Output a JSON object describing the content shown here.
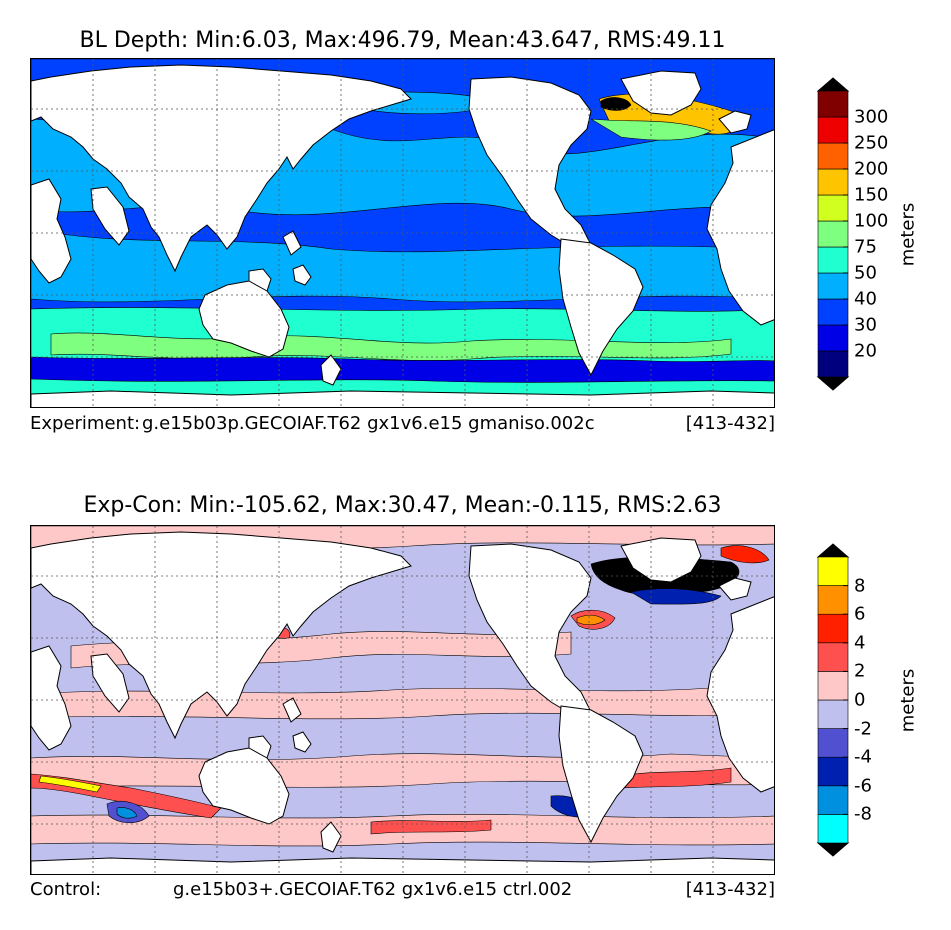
{
  "chart_data": [
    {
      "type": "contour-map",
      "title": "BL Depth: Min:6.03, Max:496.79, Mean:43.647, RMS:49.11",
      "caption_left": "Experiment:",
      "caption_middle": "g.e15b03p.GECOIAF.T62 gx1v6.e15 gmaniso.002c",
      "caption_right": "[413-432]",
      "colorbar": {
        "label": "meters",
        "extend": "both",
        "ticks": [
          "20",
          "30",
          "40",
          "50",
          "75",
          "100",
          "150",
          "200",
          "250",
          "300"
        ],
        "colors": [
          "#00007f",
          "#0000e6",
          "#0040ff",
          "#00b0ff",
          "#20ffd0",
          "#7fff7f",
          "#d0ff20",
          "#ffc400",
          "#ff6000",
          "#ee0000",
          "#800000"
        ],
        "under_color": "#000000",
        "over_color": "#000000"
      },
      "grid": true
    },
    {
      "type": "contour-map",
      "title": "Exp-Con: Min:-105.62, Max:30.47, Mean:-0.115, RMS:2.63",
      "caption_left": "Control:",
      "caption_middle": "g.e15b03+.GECOIAF.T62 gx1v6.e15 ctrl.002",
      "caption_right": "[413-432]",
      "colorbar": {
        "label": "meters",
        "extend": "both",
        "ticks": [
          "-8",
          "-6",
          "-4",
          "-2",
          "0",
          "2",
          "4",
          "6",
          "8"
        ],
        "colors": [
          "#00ffff",
          "#0090e0",
          "#0020b0",
          "#5050d0",
          "#c0c0ee",
          "#ffc8c8",
          "#ff5050",
          "#ff2000",
          "#ff9000",
          "#ffff00"
        ],
        "under_color": "#000000",
        "over_color": "#000000"
      },
      "grid": true
    }
  ]
}
